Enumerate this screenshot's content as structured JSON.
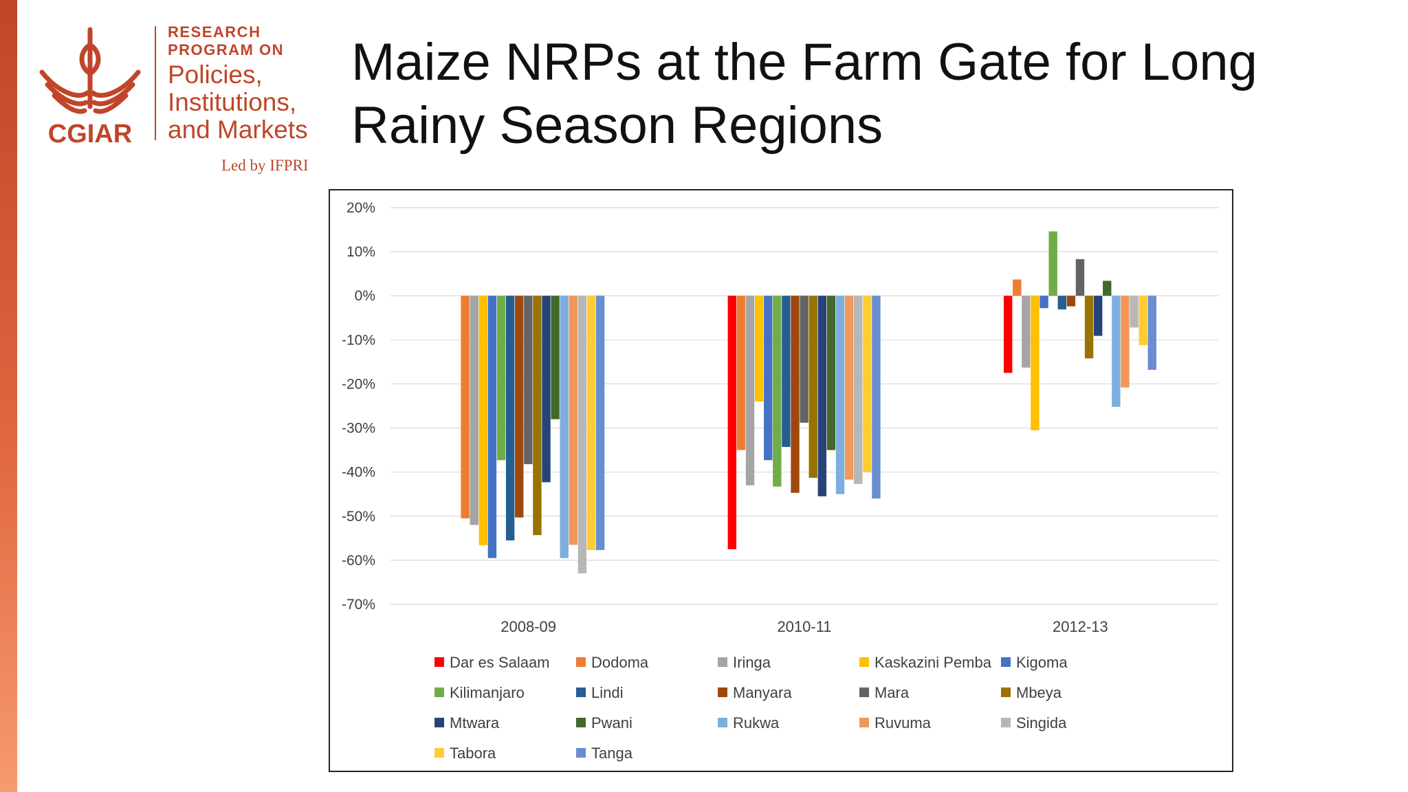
{
  "slide": {
    "title": "Maize NRPs at the Farm Gate for Long Rainy Season Regions",
    "accent_color": "#C0452A"
  },
  "logo": {
    "mark_text": "CGIAR",
    "research": "RESEARCH",
    "program_on": "PROGRAM ON",
    "policies": "Policies,",
    "institutions": "Institutions,",
    "markets": "and Markets",
    "led_by": "Led by IFPRI",
    "color": "#C0452A"
  },
  "chart_data": {
    "type": "bar",
    "title": "",
    "xlabel": "",
    "ylabel": "",
    "ylim": [
      -0.7,
      0.2
    ],
    "y_tick_values": [
      0.2,
      0.1,
      0,
      -0.1,
      -0.2,
      -0.3,
      -0.4,
      -0.5,
      -0.6,
      -0.7
    ],
    "y_tick_labels": [
      "20%",
      "10%",
      "0%",
      "-10%",
      "-20%",
      "-30%",
      "-40%",
      "-50%",
      "-60%",
      "-70%"
    ],
    "grid": true,
    "legend_position": "bottom",
    "categories": [
      "2008-09",
      "2010-11",
      "2012-13"
    ],
    "series": [
      {
        "name": "Dar es Salaam",
        "color": "#FF0000",
        "values": [
          null,
          -0.575,
          -0.175
        ]
      },
      {
        "name": "Dodoma",
        "color": "#ED7D31",
        "values": [
          -0.505,
          -0.35,
          0.037
        ]
      },
      {
        "name": "Iringa",
        "color": "#A5A5A5",
        "values": [
          -0.52,
          -0.43,
          -0.163
        ]
      },
      {
        "name": "Kaskazini Pemba",
        "color": "#FFC000",
        "values": [
          -0.566,
          -0.24,
          -0.305
        ]
      },
      {
        "name": "Kigoma",
        "color": "#4472C4",
        "values": [
          -0.595,
          -0.373,
          -0.028
        ]
      },
      {
        "name": "Kilimanjaro",
        "color": "#70AD47",
        "values": [
          -0.373,
          -0.433,
          0.146
        ]
      },
      {
        "name": "Lindi",
        "color": "#255E91",
        "values": [
          -0.555,
          -0.343,
          -0.031
        ]
      },
      {
        "name": "Manyara",
        "color": "#9E480E",
        "values": [
          -0.503,
          -0.447,
          -0.024
        ]
      },
      {
        "name": "Mara",
        "color": "#636363",
        "values": [
          -0.382,
          -0.288,
          0.083
        ]
      },
      {
        "name": "Mbeya",
        "color": "#997300",
        "values": [
          -0.543,
          -0.413,
          -0.142
        ]
      },
      {
        "name": "Mtwara",
        "color": "#264478",
        "values": [
          -0.423,
          -0.455,
          -0.091
        ]
      },
      {
        "name": "Pwani",
        "color": "#43682B",
        "values": [
          -0.28,
          -0.35,
          0.034
        ]
      },
      {
        "name": "Rukwa",
        "color": "#7CAFDD",
        "values": [
          -0.595,
          -0.45,
          -0.252
        ]
      },
      {
        "name": "Ruvuma",
        "color": "#F1975A",
        "values": [
          -0.565,
          -0.417,
          -0.208
        ]
      },
      {
        "name": "Singida",
        "color": "#B7B7B7",
        "values": [
          -0.63,
          -0.427,
          -0.072
        ]
      },
      {
        "name": "Tabora",
        "color": "#FFCD33",
        "values": [
          -0.577,
          -0.4,
          -0.112
        ]
      },
      {
        "name": "Tanga",
        "color": "#698ED0",
        "values": [
          -0.577,
          -0.46,
          -0.168
        ]
      }
    ]
  }
}
